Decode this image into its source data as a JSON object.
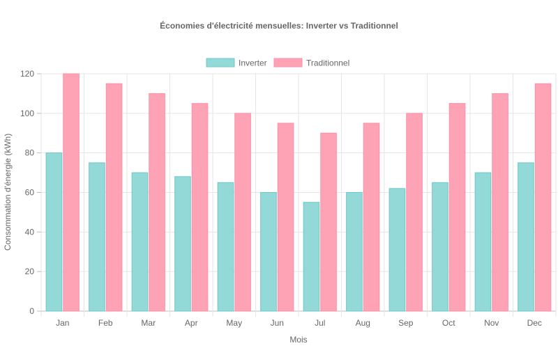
{
  "chart_data": {
    "type": "bar",
    "title": "Économies d'électricité mensuelles: Inverter vs Traditionnel",
    "xlabel": "Mois",
    "ylabel": "Consommation d'énergie (kWh)",
    "categories": [
      "Jan",
      "Feb",
      "Mar",
      "Apr",
      "May",
      "Jun",
      "Jul",
      "Aug",
      "Sep",
      "Oct",
      "Nov",
      "Dec"
    ],
    "series": [
      {
        "name": "Inverter",
        "values": [
          80,
          75,
          70,
          68,
          65,
          60,
          55,
          60,
          62,
          65,
          70,
          75
        ],
        "color": "#93d9d8",
        "stroke": "#6cc9c7"
      },
      {
        "name": "Traditionnel",
        "values": [
          120,
          115,
          110,
          105,
          100,
          95,
          90,
          95,
          100,
          105,
          110,
          115
        ],
        "color": "#fea3b5",
        "stroke": "#fe8fa6"
      }
    ],
    "ylim": [
      0,
      120
    ],
    "yticks": [
      0,
      20,
      40,
      60,
      80,
      100,
      120
    ],
    "grid": true,
    "legend_position": "top-center"
  }
}
